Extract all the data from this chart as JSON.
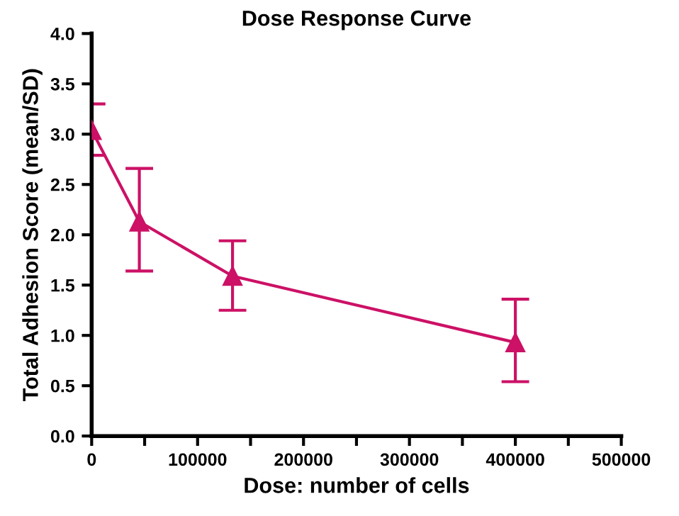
{
  "chart_data": {
    "type": "line",
    "title": "Dose Response Curve",
    "xlabel": "Dose: number of cells",
    "ylabel": "Total Adhesion Score (mean/SD)",
    "x": [
      0,
      45000,
      133000,
      400000
    ],
    "series": [
      {
        "color": "#cc1166",
        "values": [
          3.04,
          2.13,
          1.59,
          0.93
        ],
        "errors": [
          [
            2.79,
            3.3
          ],
          [
            1.64,
            2.66
          ],
          [
            1.25,
            1.94
          ],
          [
            0.54,
            1.36
          ]
        ]
      }
    ],
    "xlim": [
      0,
      500000
    ],
    "ylim": [
      0,
      4.0
    ],
    "xticks": [
      0,
      {
        "value": 50000,
        "label": null
      },
      100000,
      {
        "value": 150000,
        "label": null
      },
      200000,
      {
        "value": 250000,
        "label": null
      },
      300000,
      {
        "value": 350000,
        "label": null
      },
      400000,
      {
        "value": 450000,
        "label": null
      },
      500000
    ],
    "yticks": [
      {
        "value": 0,
        "label": "0.0"
      },
      {
        "value": 0.5,
        "label": "0.5"
      },
      {
        "value": 1.0,
        "label": "1.0"
      },
      {
        "value": 1.5,
        "label": "1.5"
      },
      {
        "value": 2.0,
        "label": "2.0"
      },
      {
        "value": 2.5,
        "label": "2.5"
      },
      {
        "value": 3.0,
        "label": "3.0"
      },
      {
        "value": 3.5,
        "label": "3.5"
      },
      {
        "value": 4.0,
        "label": "4.0"
      }
    ],
    "marker": "triangle",
    "line_style": "solid",
    "grid": false
  }
}
